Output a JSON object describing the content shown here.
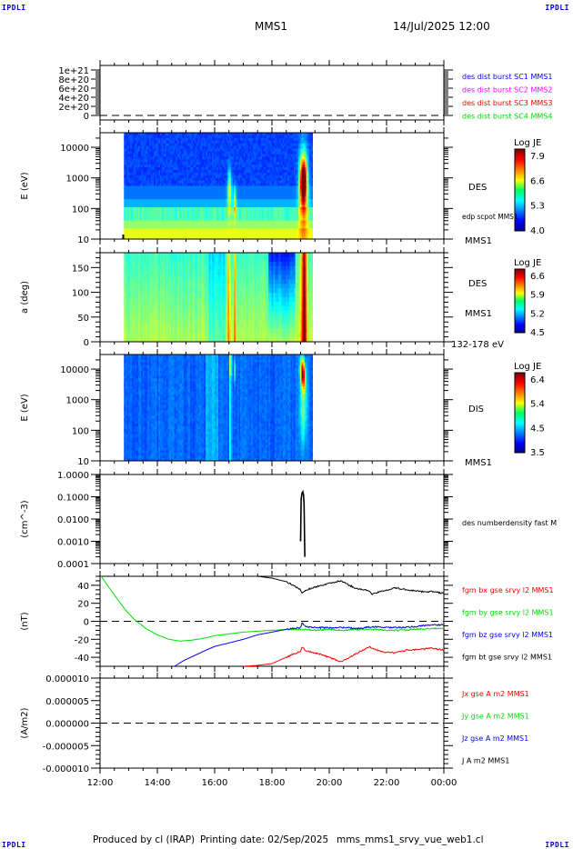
{
  "header": {
    "corner_label": "IPDLI",
    "spacecraft": "MMS1",
    "datetime": "14/Jul/2025 12:00"
  },
  "footer": {
    "produced_by": "Produced by cl (IRAP)",
    "printing_date": "Printing date: 02/Sep/2025",
    "script_name": "mms_mms1_srvy_vue_web1.cl"
  },
  "chart_data": [
    {
      "type": "line",
      "id": "burst-flags",
      "ylabel": "",
      "yticks": [
        "1e+21",
        "8e+20",
        "6e+20",
        "4e+20",
        "2e+20",
        "0"
      ],
      "ylim": [
        0,
        1e+21
      ],
      "zero_line": true,
      "legend": [
        {
          "label": "des dist burst SC1 MMS1",
          "color": "#0000ff"
        },
        {
          "label": "des dist burst SC2 MMS2",
          "color": "#ff00ff"
        },
        {
          "label": "des dist burst SC3 MMS3",
          "color": "#ff0000"
        },
        {
          "label": "des dist burst SC4 MMS4",
          "color": "#00dd00"
        }
      ],
      "series": []
    },
    {
      "type": "heatmap",
      "id": "des-energy",
      "ylabel": "E (eV)",
      "yscale": "log",
      "ylim": [
        10,
        30000
      ],
      "yticks": [
        "10000",
        "1000",
        "100",
        "10"
      ],
      "instrument": "DES",
      "spacecraft": "MMS1",
      "overlay_label": "edp scpot MMS1",
      "colorbar": {
        "title": "Log JE",
        "ticks": [
          "7.9",
          "6.6",
          "5.3",
          "4.0"
        ],
        "range": [
          4.0,
          8.2
        ]
      },
      "data_span": [
        "12:50",
        "19:25"
      ],
      "features": [
        {
          "t": "16:30",
          "e_range": [
            200,
            3000
          ],
          "level": 6.2
        },
        {
          "t": "19:05",
          "e_range": [
            80,
            10000
          ],
          "level": 7.6
        }
      ]
    },
    {
      "type": "heatmap",
      "id": "des-pitch",
      "ylabel": "a (deg)",
      "ylim": [
        0,
        180
      ],
      "yticks": [
        "150",
        "100",
        "50",
        "0"
      ],
      "instrument": "DES",
      "spacecraft": "MMS1",
      "energy_band": "132-178 eV",
      "colorbar": {
        "title": "Log JE",
        "ticks": [
          "6.6",
          "5.9",
          "5.2",
          "4.5"
        ],
        "range": [
          4.5,
          6.8
        ]
      },
      "data_span": [
        "12:50",
        "19:25"
      ]
    },
    {
      "type": "heatmap",
      "id": "dis-energy",
      "ylabel": "E (eV)",
      "yscale": "log",
      "ylim": [
        10,
        30000
      ],
      "yticks": [
        "10000",
        "1000",
        "100",
        "10"
      ],
      "instrument": "DIS",
      "spacecraft": "MMS1",
      "colorbar": {
        "title": "Log JE",
        "ticks": [
          "6.4",
          "5.4",
          "4.5",
          "3.5"
        ],
        "range": [
          3.5,
          6.6
        ]
      },
      "data_span": [
        "12:50",
        "19:25"
      ]
    },
    {
      "type": "line",
      "id": "density",
      "ylabel": "(cm^-3)",
      "yscale": "log",
      "ylim": [
        0.0001,
        1.0
      ],
      "yticks": [
        "1.0000",
        "0.1000",
        "0.0100",
        "0.0010",
        "0.0001"
      ],
      "legend": [
        {
          "label": "des numberdensity fast M",
          "color": "#000000"
        }
      ],
      "series": [
        {
          "name": "des numberdensity fast M",
          "color": "#000000",
          "x_hours": [
            19.0,
            19.02,
            19.05,
            19.08,
            19.1,
            19.12,
            19.14,
            19.15
          ],
          "y": [
            0.001,
            0.08,
            0.15,
            0.17,
            0.12,
            0.05,
            0.001,
            0.0002
          ]
        }
      ]
    },
    {
      "type": "line",
      "id": "fgm",
      "ylabel": "(nT)",
      "ylim": [
        -50,
        50
      ],
      "yticks": [
        "40",
        "20",
        "0",
        "-20",
        "-40"
      ],
      "zero_line": true,
      "legend": [
        {
          "label": "fgm bx gse srvy l2 MMS1",
          "color": "#ff0000"
        },
        {
          "label": "fgm by gse srvy l2 MMS1",
          "color": "#00dd00"
        },
        {
          "label": "fgm bz gse srvy l2 MMS1",
          "color": "#0000ff"
        },
        {
          "label": "fgm bt gse srvy l2 MMS1",
          "color": "#000000"
        }
      ],
      "series": [
        {
          "name": "bx",
          "color": "#ff0000",
          "x_hours": [
            17.0,
            17.5,
            18.0,
            18.5,
            19.0,
            19.05,
            19.2,
            19.6,
            20.0,
            20.4,
            20.7,
            21.0,
            21.4,
            21.5,
            21.9,
            22.3,
            22.7,
            23.2,
            23.6,
            24.0
          ],
          "y": [
            -50,
            -49,
            -47,
            -40,
            -33,
            -29,
            -33,
            -36,
            -40,
            -45,
            -40,
            -35,
            -28,
            -30,
            -34,
            -35,
            -32,
            -31,
            -30,
            -32
          ]
        },
        {
          "name": "by",
          "color": "#00dd00",
          "x_hours": [
            12.0,
            12.3,
            12.6,
            12.9,
            13.2,
            13.6,
            14.0,
            14.4,
            14.8,
            15.2,
            15.6,
            16.0,
            16.5,
            17.0,
            17.5,
            18.0,
            18.5,
            19.0,
            19.5,
            20.0,
            20.5,
            21.0,
            21.5,
            22.0,
            22.5,
            23.0,
            23.5,
            24.0
          ],
          "y": [
            52,
            38,
            25,
            12,
            2,
            -8,
            -15,
            -20,
            -22,
            -21,
            -19,
            -16,
            -14,
            -12,
            -11,
            -10,
            -9,
            -9,
            -10,
            -9,
            -10,
            -9,
            -9,
            -10,
            -10,
            -9,
            -8,
            -8
          ]
        },
        {
          "name": "bz",
          "color": "#0000ff",
          "x_hours": [
            14.6,
            14.9,
            15.3,
            15.7,
            16.0,
            16.5,
            17.0,
            17.5,
            18.0,
            18.5,
            19.0,
            19.05,
            19.2,
            19.6,
            20.0,
            20.5,
            21.0,
            21.5,
            22.0,
            22.5,
            23.0,
            23.5,
            24.0
          ],
          "y": [
            -50,
            -44,
            -38,
            -32,
            -28,
            -24,
            -20,
            -15,
            -12,
            -9,
            -7,
            -2,
            -6,
            -7,
            -7,
            -7,
            -8,
            -6,
            -7,
            -7,
            -6,
            -4,
            -4
          ]
        },
        {
          "name": "bt",
          "color": "#000000",
          "x_hours": [
            17.5,
            18.0,
            18.5,
            19.0,
            19.05,
            19.2,
            19.6,
            20.0,
            20.4,
            20.7,
            21.0,
            21.4,
            21.5,
            21.9,
            22.3,
            22.7,
            23.2,
            23.6,
            24.0
          ],
          "y": [
            50,
            48,
            44,
            35,
            31,
            35,
            39,
            42,
            45,
            40,
            36,
            34,
            30,
            34,
            37,
            35,
            33,
            33,
            31
          ]
        }
      ]
    },
    {
      "type": "line",
      "id": "current-density",
      "ylabel": "(A/m2)",
      "ylim": [
        -1e-05,
        1e-05
      ],
      "yticks": [
        "0.000010",
        "0.000005",
        "0.000000",
        "-0.000005",
        "-0.000010"
      ],
      "zero_line": true,
      "legend": [
        {
          "label": "Jx gse A m2 MMS1",
          "color": "#ff0000"
        },
        {
          "label": "Jy gse A m2 MMS1",
          "color": "#00dd00"
        },
        {
          "label": "Jz gse A m2 MMS1",
          "color": "#0000ff"
        },
        {
          "label": "J A m2 MMS1",
          "color": "#000000"
        }
      ],
      "series": []
    }
  ],
  "time_axis": {
    "start_hour": 12,
    "end_hour": 24,
    "labels": [
      "12:00",
      "14:00",
      "16:00",
      "18:00",
      "20:00",
      "22:00",
      "00:00"
    ]
  }
}
